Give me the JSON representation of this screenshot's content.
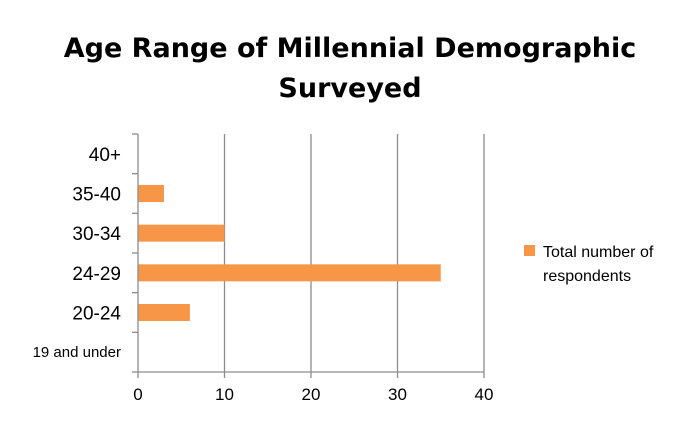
{
  "chart_data": {
    "type": "bar",
    "orientation": "horizontal",
    "title": "Age Range of Millennial Demographic Surveyed",
    "categories": [
      "19 and under",
      "20-24",
      "24-29",
      "30-34",
      "35-40",
      "40+"
    ],
    "series": [
      {
        "name": "Total number of respondents",
        "values": [
          0,
          6,
          35,
          10,
          3,
          0
        ],
        "color": "#f79646"
      }
    ],
    "xlim": [
      0,
      40
    ],
    "xticks": [
      "0",
      "10",
      "20",
      "30",
      "40"
    ],
    "xlabel": "",
    "ylabel": "",
    "grid": "vertical",
    "legend_position": "right"
  }
}
